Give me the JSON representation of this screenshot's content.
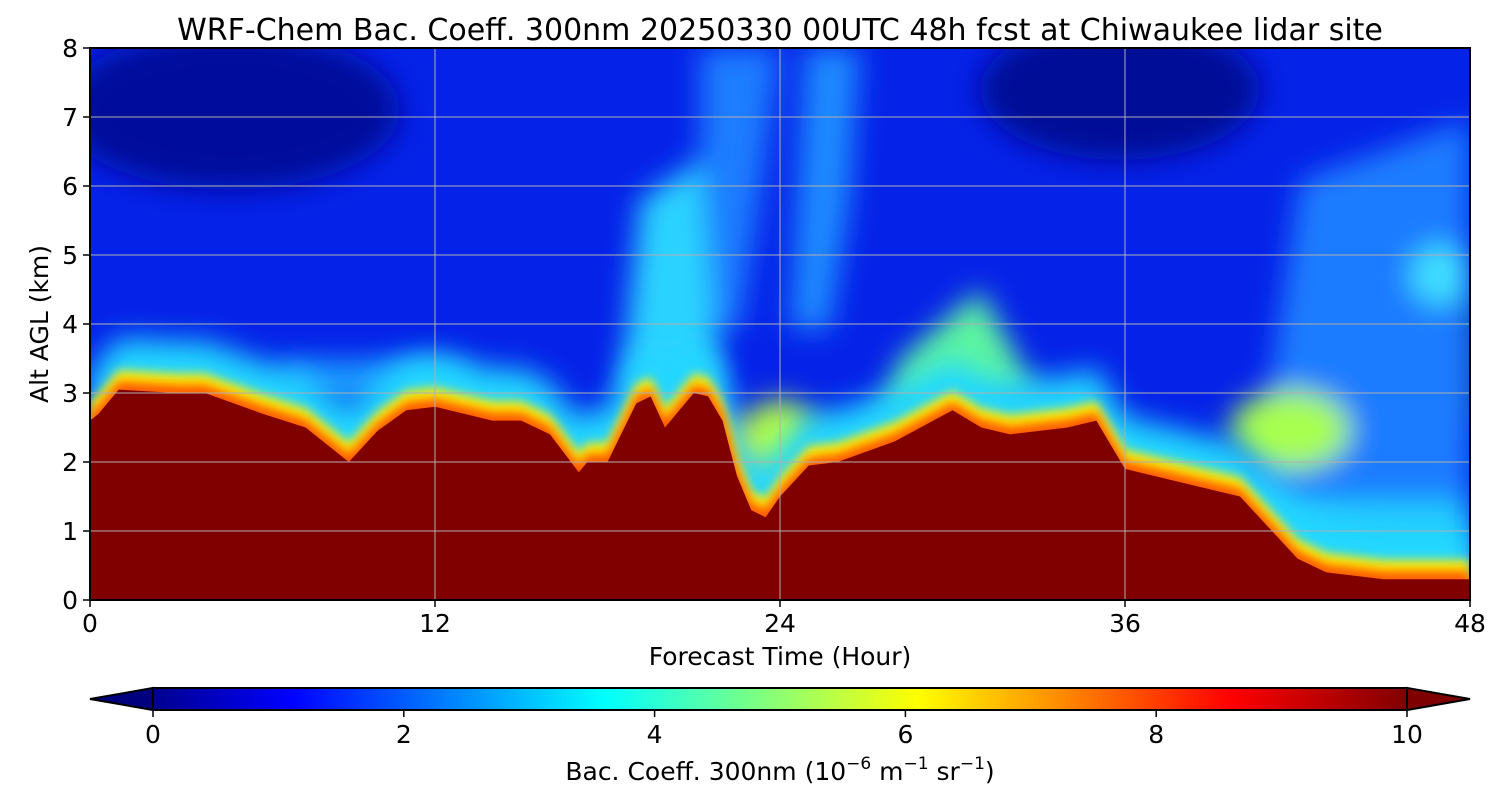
{
  "chart_data": {
    "type": "heatmap",
    "title": "WRF-Chem Bac. Coeff. 300nm  20250330 00UTC 48h fcst at Chiwaukee lidar site",
    "xlabel": "Forecast Time (Hour)",
    "ylabel": "Alt AGL (km)",
    "xlim": [
      0,
      48
    ],
    "ylim": [
      0,
      8
    ],
    "x_ticks": [
      "0",
      "12",
      "24",
      "36",
      "48"
    ],
    "y_ticks": [
      "0",
      "1",
      "2",
      "3",
      "4",
      "5",
      "6",
      "7",
      "8"
    ],
    "grid": true,
    "colormap": "jet",
    "colorbar": {
      "label_prefix": "Bac. Coeff. 300nm  (10",
      "label_exp1": "−6",
      "label_mid": " m",
      "label_exp2": "−1",
      "label_mid2": " sr",
      "label_exp3": "−1",
      "label_suffix": ")",
      "range": [
        0,
        10
      ],
      "ticks": [
        "0",
        "2",
        "4",
        "6",
        "8",
        "10"
      ],
      "extend": "both",
      "orientation": "horizontal"
    },
    "grid_hours": [
      0,
      0.3,
      1,
      3,
      4,
      6,
      7.5,
      9,
      10,
      11,
      12,
      14,
      15,
      16,
      17,
      17.3,
      18,
      19,
      19.5,
      20,
      21,
      21.5,
      22,
      22.5,
      23,
      23.5,
      24,
      25,
      26,
      28,
      30,
      31,
      32,
      34,
      35,
      36,
      38,
      40,
      42,
      43,
      45,
      47,
      48
    ],
    "boundary_layer_top_km": [
      2.6,
      2.7,
      3.05,
      3.0,
      3.0,
      2.7,
      2.5,
      2.0,
      2.45,
      2.75,
      2.8,
      2.6,
      2.6,
      2.4,
      1.85,
      2.0,
      2.0,
      2.85,
      2.95,
      2.5,
      3.0,
      2.95,
      2.6,
      1.8,
      1.3,
      1.2,
      1.5,
      1.95,
      2.0,
      2.3,
      2.75,
      2.5,
      2.4,
      2.5,
      2.6,
      1.9,
      1.7,
      1.5,
      0.6,
      0.4,
      0.3,
      0.3,
      0.3
    ]
  }
}
